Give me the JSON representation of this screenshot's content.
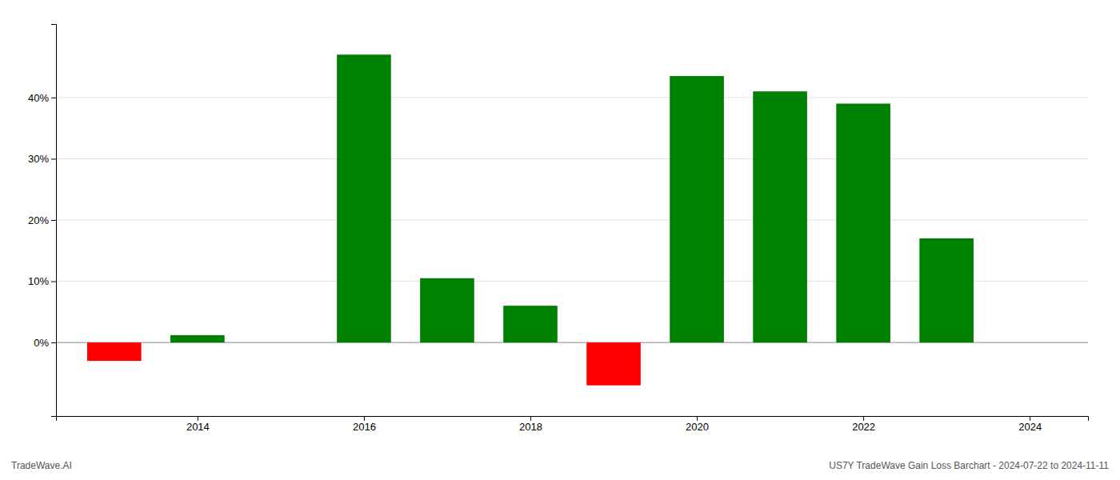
{
  "chart_data": {
    "type": "bar",
    "title": "US7Y TradeWave Gain Loss Barchart - 2024-07-22 to 2024-11-11",
    "annotations": [
      "TradeWave.AI"
    ],
    "x": [
      2013,
      2014,
      2015,
      2016,
      2017,
      2018,
      2019,
      2020,
      2021,
      2022,
      2023
    ],
    "values": [
      -3.0,
      1.2,
      0.0,
      47.0,
      10.5,
      6.0,
      -7.0,
      43.5,
      41.0,
      39.0,
      17.0
    ],
    "colors": [
      "#ff0000",
      "#008000",
      "#008000",
      "#008000",
      "#008000",
      "#008000",
      "#ff0000",
      "#008000",
      "#008000",
      "#008000",
      "#008000"
    ],
    "xlim": [
      2012.3,
      2024.7
    ],
    "xticks": [
      2014,
      2016,
      2018,
      2020,
      2022,
      2024
    ],
    "ylim": [
      -12,
      52
    ],
    "yticks": [
      {
        "value": 0,
        "label": "0%"
      },
      {
        "value": 10,
        "label": "10%"
      },
      {
        "value": 20,
        "label": "20%"
      },
      {
        "value": 30,
        "label": "30%"
      },
      {
        "value": 40,
        "label": "40%"
      }
    ],
    "grid": true
  }
}
